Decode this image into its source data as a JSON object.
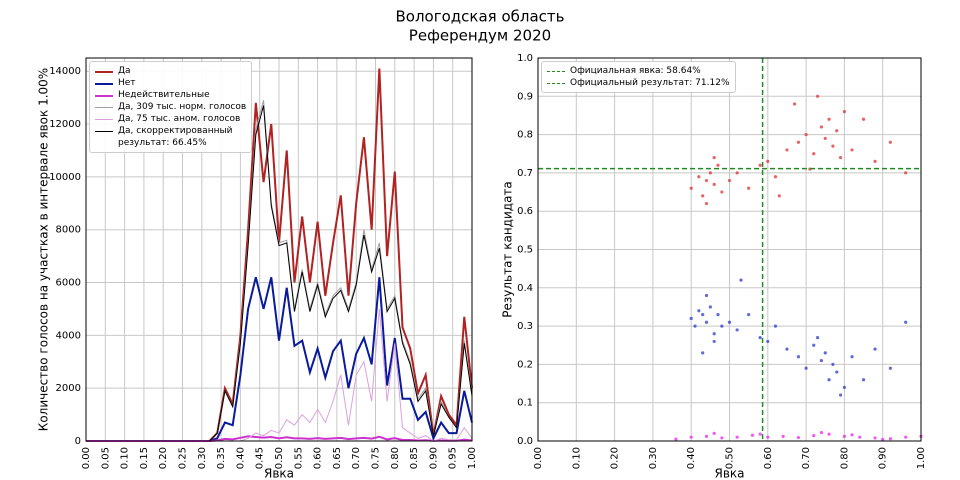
{
  "chart_data": [
    {
      "type": "line",
      "title": [
        "Вологодская область",
        "Референдум 2020"
      ],
      "xlabel": "Явка",
      "ylabel": "Количество голосов на участках в интервале явок 1.00%",
      "xlim": [
        0,
        1
      ],
      "ylim": [
        0,
        14500
      ],
      "grid": true,
      "legend": "upper left",
      "xticks": [
        {
          "value": 0,
          "label": "0.00"
        },
        {
          "value": 0.05,
          "label": "0.05"
        },
        {
          "value": 0.1,
          "label": "0.10"
        },
        {
          "value": 0.15,
          "label": "0.15"
        },
        {
          "value": 0.2,
          "label": "0.20"
        },
        {
          "value": 0.25,
          "label": "0.25"
        },
        {
          "value": 0.3,
          "label": "0.30"
        },
        {
          "value": 0.35,
          "label": "0.35"
        },
        {
          "value": 0.4,
          "label": "0.40"
        },
        {
          "value": 0.45,
          "label": "0.45"
        },
        {
          "value": 0.5,
          "label": "0.50"
        },
        {
          "value": 0.55,
          "label": "0.55"
        },
        {
          "value": 0.6,
          "label": "0.60"
        },
        {
          "value": 0.65,
          "label": "0.65"
        },
        {
          "value": 0.7,
          "label": "0.70"
        },
        {
          "value": 0.75,
          "label": "0.75"
        },
        {
          "value": 0.8,
          "label": "0.80"
        },
        {
          "value": 0.85,
          "label": "0.85"
        },
        {
          "value": 0.9,
          "label": "0.90"
        },
        {
          "value": 0.95,
          "label": "0.95"
        },
        {
          "value": 1,
          "label": "1.00"
        }
      ],
      "yticks": [
        0,
        2000,
        4000,
        6000,
        8000,
        10000,
        12000,
        14000
      ],
      "x": [
        0,
        0.32,
        0.34,
        0.36,
        0.38,
        0.4,
        0.42,
        0.44,
        0.46,
        0.48,
        0.5,
        0.52,
        0.54,
        0.56,
        0.58,
        0.6,
        0.62,
        0.64,
        0.66,
        0.68,
        0.7,
        0.72,
        0.74,
        0.76,
        0.78,
        0.8,
        0.82,
        0.84,
        0.86,
        0.88,
        0.9,
        0.92,
        0.94,
        0.96,
        0.98,
        1.0
      ],
      "series": [
        {
          "name": "Да",
          "color": "#b22222",
          "width": 2,
          "values": [
            0,
            0,
            300,
            2000,
            1400,
            4000,
            8000,
            12800,
            9800,
            12000,
            7500,
            11000,
            6000,
            8500,
            6000,
            8300,
            5500,
            7500,
            9300,
            5500,
            9000,
            11500,
            8000,
            14100,
            7000,
            10200,
            4300,
            3500,
            1800,
            2500,
            200,
            1700,
            1000,
            600,
            4700,
            2000
          ]
        },
        {
          "name": "Нет",
          "color": "#0a1a9c",
          "width": 2,
          "values": [
            0,
            0,
            100,
            700,
            600,
            2500,
            5000,
            6200,
            5000,
            6200,
            3800,
            5800,
            3600,
            3800,
            2600,
            3500,
            2400,
            3400,
            3800,
            2000,
            3300,
            3900,
            2900,
            6200,
            2100,
            3900,
            1600,
            1600,
            800,
            1100,
            100,
            700,
            300,
            300,
            1900,
            700
          ]
        },
        {
          "name": "Недействительные",
          "color": "#cc33cc",
          "width": 2,
          "values": [
            0,
            0,
            20,
            80,
            60,
            120,
            180,
            150,
            130,
            150,
            100,
            140,
            100,
            100,
            80,
            110,
            80,
            100,
            120,
            70,
            100,
            120,
            90,
            160,
            60,
            110,
            40,
            40,
            20,
            30,
            5,
            20,
            10,
            10,
            50,
            20
          ]
        },
        {
          "name": "Да, 309 тыс. норм. голосов",
          "color": "#a0a0a0",
          "width": 1,
          "values": [
            0,
            0,
            300,
            1900,
            1300,
            3800,
            7500,
            11800,
            12900,
            9000,
            7500,
            7600,
            5000,
            6500,
            5000,
            6000,
            4800,
            5500,
            5800,
            5000,
            6000,
            8000,
            6500,
            7500,
            5000,
            5500,
            3800,
            3000,
            1600,
            2000,
            200,
            1500,
            900,
            500,
            3800,
            1800
          ]
        },
        {
          "name": "Да, 75 тыс. аном. голосов",
          "color": "#dda0dd",
          "width": 1,
          "values": [
            0,
            0,
            0,
            0,
            0,
            0,
            100,
            300,
            200,
            400,
            300,
            800,
            600,
            1000,
            700,
            1200,
            700,
            1500,
            2500,
            600,
            2500,
            3000,
            1500,
            5000,
            1500,
            3700,
            500,
            300,
            100,
            200,
            0,
            100,
            50,
            50,
            500,
            100
          ]
        },
        {
          "name": "Да, скорректированный\nрезультат: 66.45%",
          "color": "#000000",
          "width": 1,
          "values": [
            0,
            0,
            300,
            1900,
            1300,
            3700,
            7400,
            11600,
            12700,
            8900,
            7400,
            7500,
            4900,
            6400,
            4900,
            5900,
            4700,
            5400,
            5700,
            4900,
            5900,
            7800,
            6400,
            7300,
            4900,
            5400,
            3700,
            2900,
            1500,
            1900,
            200,
            1400,
            900,
            500,
            3700,
            1700
          ]
        }
      ]
    },
    {
      "type": "scatter",
      "xlabel": "Явка",
      "ylabel": "Результат кандидата",
      "xlim": [
        0,
        1
      ],
      "ylim": [
        0,
        1
      ],
      "grid": true,
      "legend": "upper left",
      "xticks": [
        {
          "value": 0,
          "label": "0.00"
        },
        {
          "value": 0.1,
          "label": "0.10"
        },
        {
          "value": 0.2,
          "label": "0.20"
        },
        {
          "value": 0.3,
          "label": "0.30"
        },
        {
          "value": 0.4,
          "label": "0.40"
        },
        {
          "value": 0.5,
          "label": "0.50"
        },
        {
          "value": 0.6,
          "label": "0.60"
        },
        {
          "value": 0.7,
          "label": "0.70"
        },
        {
          "value": 0.8,
          "label": "0.80"
        },
        {
          "value": 0.9,
          "label": "0.90"
        },
        {
          "value": 1,
          "label": "1.00"
        }
      ],
      "yticks": [
        {
          "value": 0,
          "label": "0.0"
        },
        {
          "value": 0.1,
          "label": "0.1"
        },
        {
          "value": 0.2,
          "label": "0.2"
        },
        {
          "value": 0.3,
          "label": "0.3"
        },
        {
          "value": 0.4,
          "label": "0.4"
        },
        {
          "value": 0.5,
          "label": "0.5"
        },
        {
          "value": 0.6,
          "label": "0.6"
        },
        {
          "value": 0.7,
          "label": "0.7"
        },
        {
          "value": 0.8,
          "label": "0.8"
        },
        {
          "value": 0.9,
          "label": "0.9"
        },
        {
          "value": 1,
          "label": "1.0"
        }
      ],
      "reference_lines": [
        {
          "name": "Официальная явка: 58.64%",
          "axis": "x",
          "value": 0.5864,
          "color": "#228b22"
        },
        {
          "name": "Официальный результат: 71.12%",
          "axis": "y",
          "value": 0.7112,
          "color": "#228b22"
        }
      ],
      "series": [
        {
          "color": "#e03030",
          "x": [
            0.4,
            0.42,
            0.43,
            0.44,
            0.45,
            0.46,
            0.47,
            0.48,
            0.44,
            0.46,
            0.5,
            0.52,
            0.55,
            0.58,
            0.6,
            0.62,
            0.65,
            0.68,
            0.7,
            0.72,
            0.74,
            0.75,
            0.76,
            0.77,
            0.78,
            0.8,
            0.73,
            0.71,
            0.82,
            0.85,
            0.88,
            0.92,
            0.96,
            0.63,
            0.67,
            0.79
          ],
          "y": [
            0.66,
            0.69,
            0.64,
            0.68,
            0.7,
            0.67,
            0.72,
            0.65,
            0.62,
            0.74,
            0.68,
            0.7,
            0.66,
            0.72,
            0.73,
            0.69,
            0.76,
            0.78,
            0.8,
            0.75,
            0.82,
            0.79,
            0.84,
            0.77,
            0.81,
            0.86,
            0.9,
            0.71,
            0.76,
            0.84,
            0.73,
            0.78,
            0.7,
            0.64,
            0.88,
            0.74
          ]
        },
        {
          "color": "#2a3acc",
          "x": [
            0.4,
            0.41,
            0.42,
            0.43,
            0.44,
            0.45,
            0.46,
            0.47,
            0.48,
            0.44,
            0.46,
            0.5,
            0.52,
            0.55,
            0.58,
            0.6,
            0.62,
            0.65,
            0.68,
            0.7,
            0.72,
            0.74,
            0.75,
            0.76,
            0.77,
            0.78,
            0.8,
            0.82,
            0.85,
            0.88,
            0.73,
            0.79,
            0.92,
            0.96,
            0.53,
            0.43
          ],
          "y": [
            0.32,
            0.3,
            0.34,
            0.33,
            0.31,
            0.35,
            0.28,
            0.33,
            0.3,
            0.38,
            0.26,
            0.31,
            0.29,
            0.33,
            0.27,
            0.26,
            0.3,
            0.24,
            0.22,
            0.19,
            0.25,
            0.21,
            0.23,
            0.16,
            0.2,
            0.18,
            0.14,
            0.22,
            0.16,
            0.24,
            0.27,
            0.12,
            0.19,
            0.31,
            0.42,
            0.23
          ]
        },
        {
          "color": "#ee22ee",
          "x": [
            0.36,
            0.4,
            0.44,
            0.48,
            0.52,
            0.56,
            0.6,
            0.64,
            0.68,
            0.72,
            0.76,
            0.8,
            0.84,
            0.88,
            0.92,
            0.96,
            1.0,
            0.46,
            0.58,
            0.74,
            0.82,
            0.9
          ],
          "y": [
            0.005,
            0.01,
            0.012,
            0.008,
            0.01,
            0.015,
            0.01,
            0.012,
            0.009,
            0.014,
            0.018,
            0.012,
            0.01,
            0.008,
            0.006,
            0.01,
            0.012,
            0.02,
            0.018,
            0.022,
            0.016,
            0.004
          ]
        }
      ]
    }
  ]
}
